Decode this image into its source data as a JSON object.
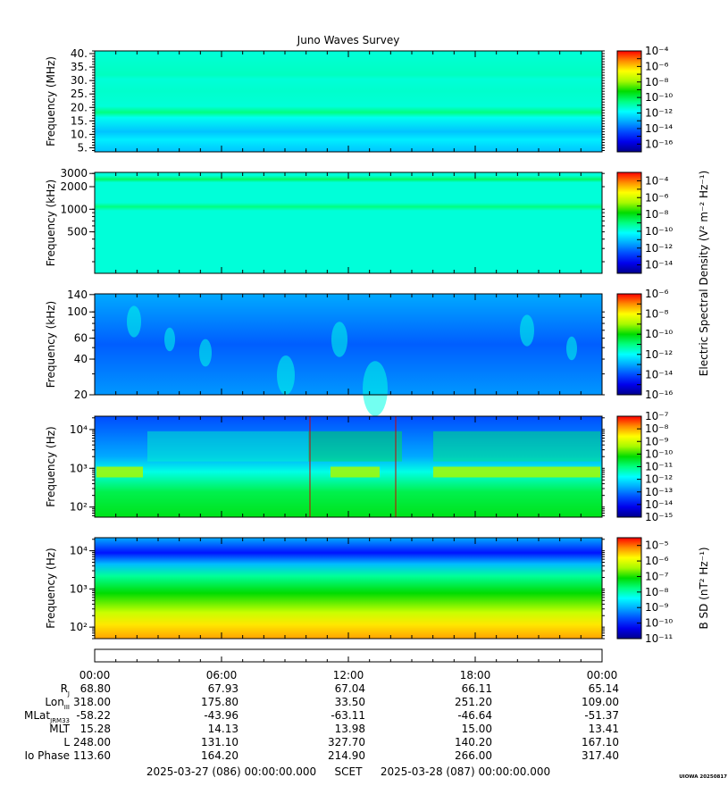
{
  "title": "Juno Waves Survey",
  "footer": {
    "start": "2025-03-27 (086) 00:00:00.000",
    "scet": "SCET",
    "end": "2025-03-28 (087) 00:00:00.000",
    "watermark": "UIOWA 20250817"
  },
  "shared_colorbar_label": "Electric Spectral Density (V² m⁻² Hz⁻¹)",
  "chart_data": [
    {
      "type": "heatmap",
      "name": "panel-mhz",
      "ylabel": "Frequency (MHz)",
      "yscale": "linear",
      "ylim": [
        3.5,
        41
      ],
      "yticks": [
        {
          "value": 5,
          "label": "5."
        },
        {
          "value": 10,
          "label": "10."
        },
        {
          "value": 15,
          "label": "15."
        },
        {
          "value": 20,
          "label": "20."
        },
        {
          "value": 25,
          "label": "25."
        },
        {
          "value": 30,
          "label": "30."
        },
        {
          "value": 35,
          "label": "35."
        },
        {
          "value": 40,
          "label": "40."
        }
      ],
      "colorbar": {
        "min_exp": -17,
        "max_exp": -4,
        "labels": [
          {
            "exp": -4,
            "text": "10⁻⁴"
          },
          {
            "exp": -6,
            "text": "10⁻⁶"
          },
          {
            "exp": -8,
            "text": "10⁻⁸"
          },
          {
            "exp": -10,
            "text": "10⁻¹⁰"
          },
          {
            "exp": -12,
            "text": "10⁻¹²"
          },
          {
            "exp": -14,
            "text": "10⁻¹⁴"
          },
          {
            "exp": -16,
            "text": "10⁻¹⁶"
          }
        ]
      }
    },
    {
      "type": "heatmap",
      "name": "panel-khz-high",
      "ylabel": "Frequency (kHz)",
      "yscale": "log",
      "ylim": [
        140,
        3100
      ],
      "yticks": [
        {
          "value": 3000,
          "label": "3000"
        },
        {
          "value": 2000,
          "label": "2000"
        },
        {
          "value": 1000,
          "label": "1000"
        },
        {
          "value": 500,
          "label": "500"
        }
      ],
      "colorbar": {
        "min_exp": -15,
        "max_exp": -3,
        "labels": [
          {
            "exp": -4,
            "text": "10⁻⁴"
          },
          {
            "exp": -6,
            "text": "10⁻⁶"
          },
          {
            "exp": -8,
            "text": "10⁻⁸"
          },
          {
            "exp": -10,
            "text": "10⁻¹⁰"
          },
          {
            "exp": -12,
            "text": "10⁻¹²"
          },
          {
            "exp": -14,
            "text": "10⁻¹⁴"
          }
        ]
      }
    },
    {
      "type": "heatmap",
      "name": "panel-khz-low",
      "ylabel": "Frequency (kHz)",
      "yscale": "log",
      "ylim": [
        20,
        142
      ],
      "yticks": [
        {
          "value": 140,
          "label": "140"
        },
        {
          "value": 100,
          "label": "100"
        },
        {
          "value": 60,
          "label": "60"
        },
        {
          "value": 40,
          "label": "40"
        },
        {
          "value": 20,
          "label": "20"
        }
      ],
      "colorbar": {
        "min_exp": -16,
        "max_exp": -6,
        "labels": [
          {
            "exp": -6,
            "text": "10⁻⁶"
          },
          {
            "exp": -8,
            "text": "10⁻⁸"
          },
          {
            "exp": -10,
            "text": "10⁻¹⁰"
          },
          {
            "exp": -12,
            "text": "10⁻¹²"
          },
          {
            "exp": -14,
            "text": "10⁻¹⁴"
          },
          {
            "exp": -16,
            "text": "10⁻¹⁶"
          }
        ]
      }
    },
    {
      "type": "heatmap",
      "name": "panel-hz-e",
      "ylabel": "Frequency (Hz)",
      "yscale": "log",
      "ylim": [
        55,
        22000
      ],
      "yticks": [
        {
          "value": 10000,
          "label": "10⁴"
        },
        {
          "value": 1000,
          "label": "10³"
        },
        {
          "value": 100,
          "label": "10²"
        }
      ],
      "colorbar": {
        "min_exp": -15,
        "max_exp": -7,
        "labels": [
          {
            "exp": -7,
            "text": "10⁻⁷"
          },
          {
            "exp": -8,
            "text": "10⁻⁸"
          },
          {
            "exp": -9,
            "text": "10⁻⁹"
          },
          {
            "exp": -10,
            "text": "10⁻¹⁰"
          },
          {
            "exp": -11,
            "text": "10⁻¹¹"
          },
          {
            "exp": -12,
            "text": "10⁻¹²"
          },
          {
            "exp": -13,
            "text": "10⁻¹³"
          },
          {
            "exp": -14,
            "text": "10⁻¹⁴"
          },
          {
            "exp": -15,
            "text": "10⁻¹⁵"
          }
        ]
      }
    },
    {
      "type": "heatmap",
      "name": "panel-hz-b",
      "ylabel": "Frequency (Hz)",
      "yscale": "log",
      "ylim": [
        50,
        22000
      ],
      "yticks": [
        {
          "value": 10000,
          "label": "10⁴"
        },
        {
          "value": 1000,
          "label": "10³"
        },
        {
          "value": 100,
          "label": "10²"
        }
      ],
      "colorbar_label": "B SD (nT² Hz⁻¹)",
      "colorbar": {
        "min_exp": -11,
        "max_exp": -4.5,
        "labels": [
          {
            "exp": -5,
            "text": "10⁻⁵"
          },
          {
            "exp": -6,
            "text": "10⁻⁶"
          },
          {
            "exp": -7,
            "text": "10⁻⁷"
          },
          {
            "exp": -8,
            "text": "10⁻⁸"
          },
          {
            "exp": -9,
            "text": "10⁻⁹"
          },
          {
            "exp": -10,
            "text": "10⁻¹⁰"
          },
          {
            "exp": -11,
            "text": "10⁻¹¹"
          }
        ]
      }
    }
  ],
  "time_axis": {
    "range_hours": [
      0,
      24
    ],
    "ticks": [
      "00:00",
      "06:00",
      "12:00",
      "18:00",
      "00:00"
    ],
    "ephemeris": [
      {
        "label": "R",
        "sub": "J",
        "values": [
          "68.80",
          "67.93",
          "67.04",
          "66.11",
          "65.14"
        ]
      },
      {
        "label": "Lon",
        "sub": "III",
        "values": [
          "318.00",
          "175.80",
          "33.50",
          "251.20",
          "109.00"
        ]
      },
      {
        "label": "MLat",
        "sub": "JRM33",
        "values": [
          "-58.22",
          "-43.96",
          "-63.11",
          "-46.64",
          "-51.37"
        ]
      },
      {
        "label": "MLT",
        "sub": "",
        "values": [
          "15.28",
          "14.13",
          "13.98",
          "15.00",
          "13.41"
        ]
      },
      {
        "label": "L",
        "sub": "",
        "values": [
          "248.00",
          "131.10",
          "327.70",
          "140.20",
          "167.10"
        ]
      },
      {
        "label": "Io Phase",
        "sub": "",
        "values": [
          "113.60",
          "164.20",
          "214.90",
          "266.00",
          "317.40"
        ]
      }
    ]
  }
}
